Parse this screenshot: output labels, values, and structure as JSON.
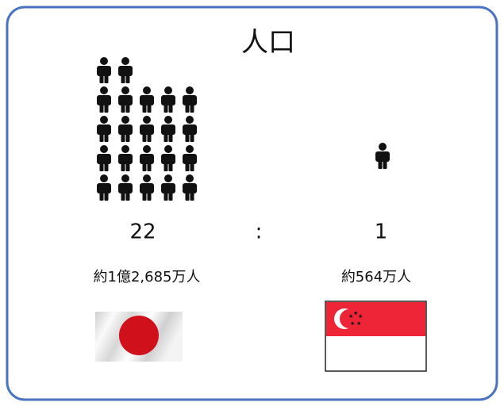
{
  "title": "人口",
  "left": {
    "ratio": 22,
    "population": "約1億2,685万人"
  },
  "separator": ":",
  "right": {
    "ratio": 1,
    "population": "約564万人"
  }
}
